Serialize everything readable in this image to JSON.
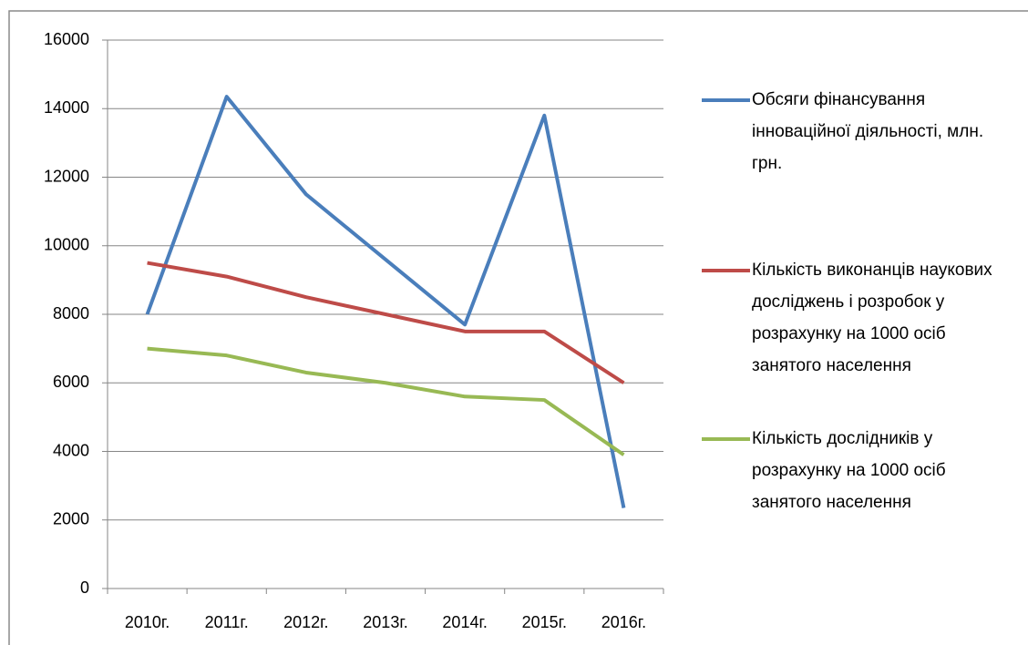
{
  "chart_data": {
    "type": "line",
    "categories": [
      "2010г.",
      "2011г.",
      "2012г.",
      "2013г.",
      "2014г.",
      "2015г.",
      "2016г."
    ],
    "series": [
      {
        "name": "Обсяги фінансування інноваційної діяльності, млн. грн.",
        "color": "#4a7ebb",
        "values": [
          8000,
          14350,
          11500,
          9600,
          7700,
          13800,
          2350
        ]
      },
      {
        "name": "Кількість виконанців наукових досліджень і розробок у розрахунку на 1000 осіб занятого населення",
        "color": "#be4b48",
        "values": [
          9500,
          9100,
          8500,
          8000,
          7500,
          7500,
          6000
        ]
      },
      {
        "name": "Кількість дослідників у розрахунку на 1000 осіб занятого населення",
        "color": "#98b954",
        "values": [
          7000,
          6800,
          6300,
          6000,
          5600,
          5500,
          3900
        ]
      }
    ],
    "ylim": [
      0,
      16000
    ],
    "yticks": [
      0,
      2000,
      4000,
      6000,
      8000,
      10000,
      12000,
      14000,
      16000
    ],
    "grid": true,
    "legend": "right"
  }
}
